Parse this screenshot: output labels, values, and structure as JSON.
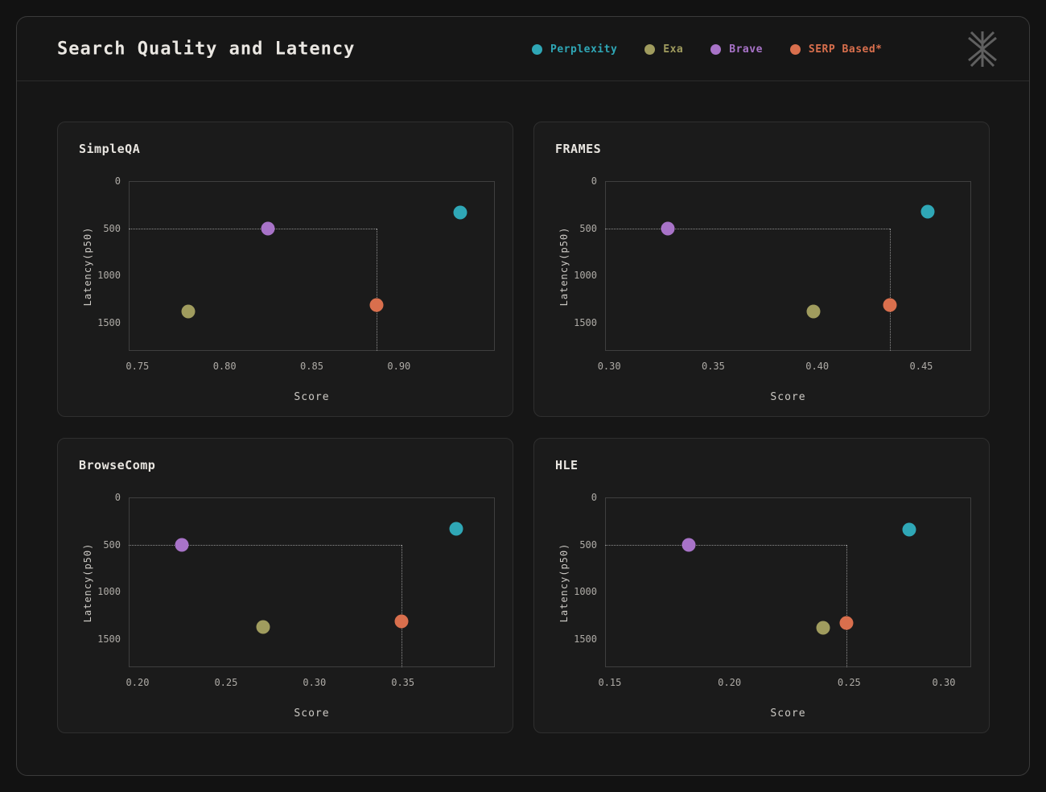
{
  "header": {
    "title": "Search Quality and Latency"
  },
  "legend": [
    {
      "name": "Perplexity",
      "color": "#2fa7b6"
    },
    {
      "name": "Exa",
      "color": "#a09c5e"
    },
    {
      "name": "Brave",
      "color": "#a873c8"
    },
    {
      "name": "SERP Based*",
      "color": "#d96f4d"
    }
  ],
  "logo_icon": "asterisk-star-logo",
  "chart_data": [
    {
      "type": "scatter",
      "title": "SimpleQA",
      "xlabel": "Score",
      "ylabel": "Latency(p50)",
      "xlim": [
        0.745,
        0.955
      ],
      "xticks": [
        0.75,
        0.8,
        0.85,
        0.9
      ],
      "ylim": [
        0,
        1800
      ],
      "yticks": [
        0,
        500,
        1000,
        1500
      ],
      "y_inverted": true,
      "grid": false,
      "crosshair": {
        "x": 0.887,
        "y": 500
      },
      "points": [
        {
          "series": "Perplexity",
          "x": 0.935,
          "y": 335
        },
        {
          "series": "Exa",
          "x": 0.779,
          "y": 1380
        },
        {
          "series": "Brave",
          "x": 0.825,
          "y": 500
        },
        {
          "series": "SERP Based*",
          "x": 0.887,
          "y": 1315
        }
      ]
    },
    {
      "type": "scatter",
      "title": "FRAMES",
      "xlabel": "Score",
      "ylabel": "Latency(p50)",
      "xlim": [
        0.298,
        0.474
      ],
      "xticks": [
        0.3,
        0.35,
        0.4,
        0.45
      ],
      "ylim": [
        0,
        1800
      ],
      "yticks": [
        0,
        500,
        1000,
        1500
      ],
      "y_inverted": true,
      "grid": false,
      "crosshair": {
        "x": 0.435,
        "y": 500
      },
      "points": [
        {
          "series": "Perplexity",
          "x": 0.453,
          "y": 327
        },
        {
          "series": "Exa",
          "x": 0.398,
          "y": 1378
        },
        {
          "series": "Brave",
          "x": 0.328,
          "y": 500
        },
        {
          "series": "SERP Based*",
          "x": 0.435,
          "y": 1315
        }
      ]
    },
    {
      "type": "scatter",
      "title": "BrowseComp",
      "xlabel": "Score",
      "ylabel": "Latency(p50)",
      "xlim": [
        0.195,
        0.402
      ],
      "xticks": [
        0.2,
        0.25,
        0.3,
        0.35
      ],
      "ylim": [
        0,
        1800
      ],
      "yticks": [
        0,
        500,
        1000,
        1500
      ],
      "y_inverted": true,
      "grid": false,
      "crosshair": {
        "x": 0.349,
        "y": 500
      },
      "points": [
        {
          "series": "Perplexity",
          "x": 0.38,
          "y": 330
        },
        {
          "series": "Exa",
          "x": 0.271,
          "y": 1372
        },
        {
          "series": "Brave",
          "x": 0.225,
          "y": 500
        },
        {
          "series": "SERP Based*",
          "x": 0.349,
          "y": 1312
        }
      ]
    },
    {
      "type": "scatter",
      "title": "HLE",
      "xlabel": "Score",
      "ylabel": "Latency(p50)",
      "xlim": [
        0.148,
        0.301
      ],
      "xticks": [
        0.15,
        0.2,
        0.25,
        0.3
      ],
      "ylim": [
        0,
        1800
      ],
      "yticks": [
        0,
        500,
        1000,
        1500
      ],
      "y_inverted": true,
      "grid": false,
      "crosshair": {
        "x": 0.249,
        "y": 500
      },
      "points": [
        {
          "series": "Perplexity",
          "x": 0.275,
          "y": 343
        },
        {
          "series": "Exa",
          "x": 0.239,
          "y": 1385
        },
        {
          "series": "Brave",
          "x": 0.183,
          "y": 500
        },
        {
          "series": "SERP Based*",
          "x": 0.249,
          "y": 1330
        }
      ]
    }
  ]
}
